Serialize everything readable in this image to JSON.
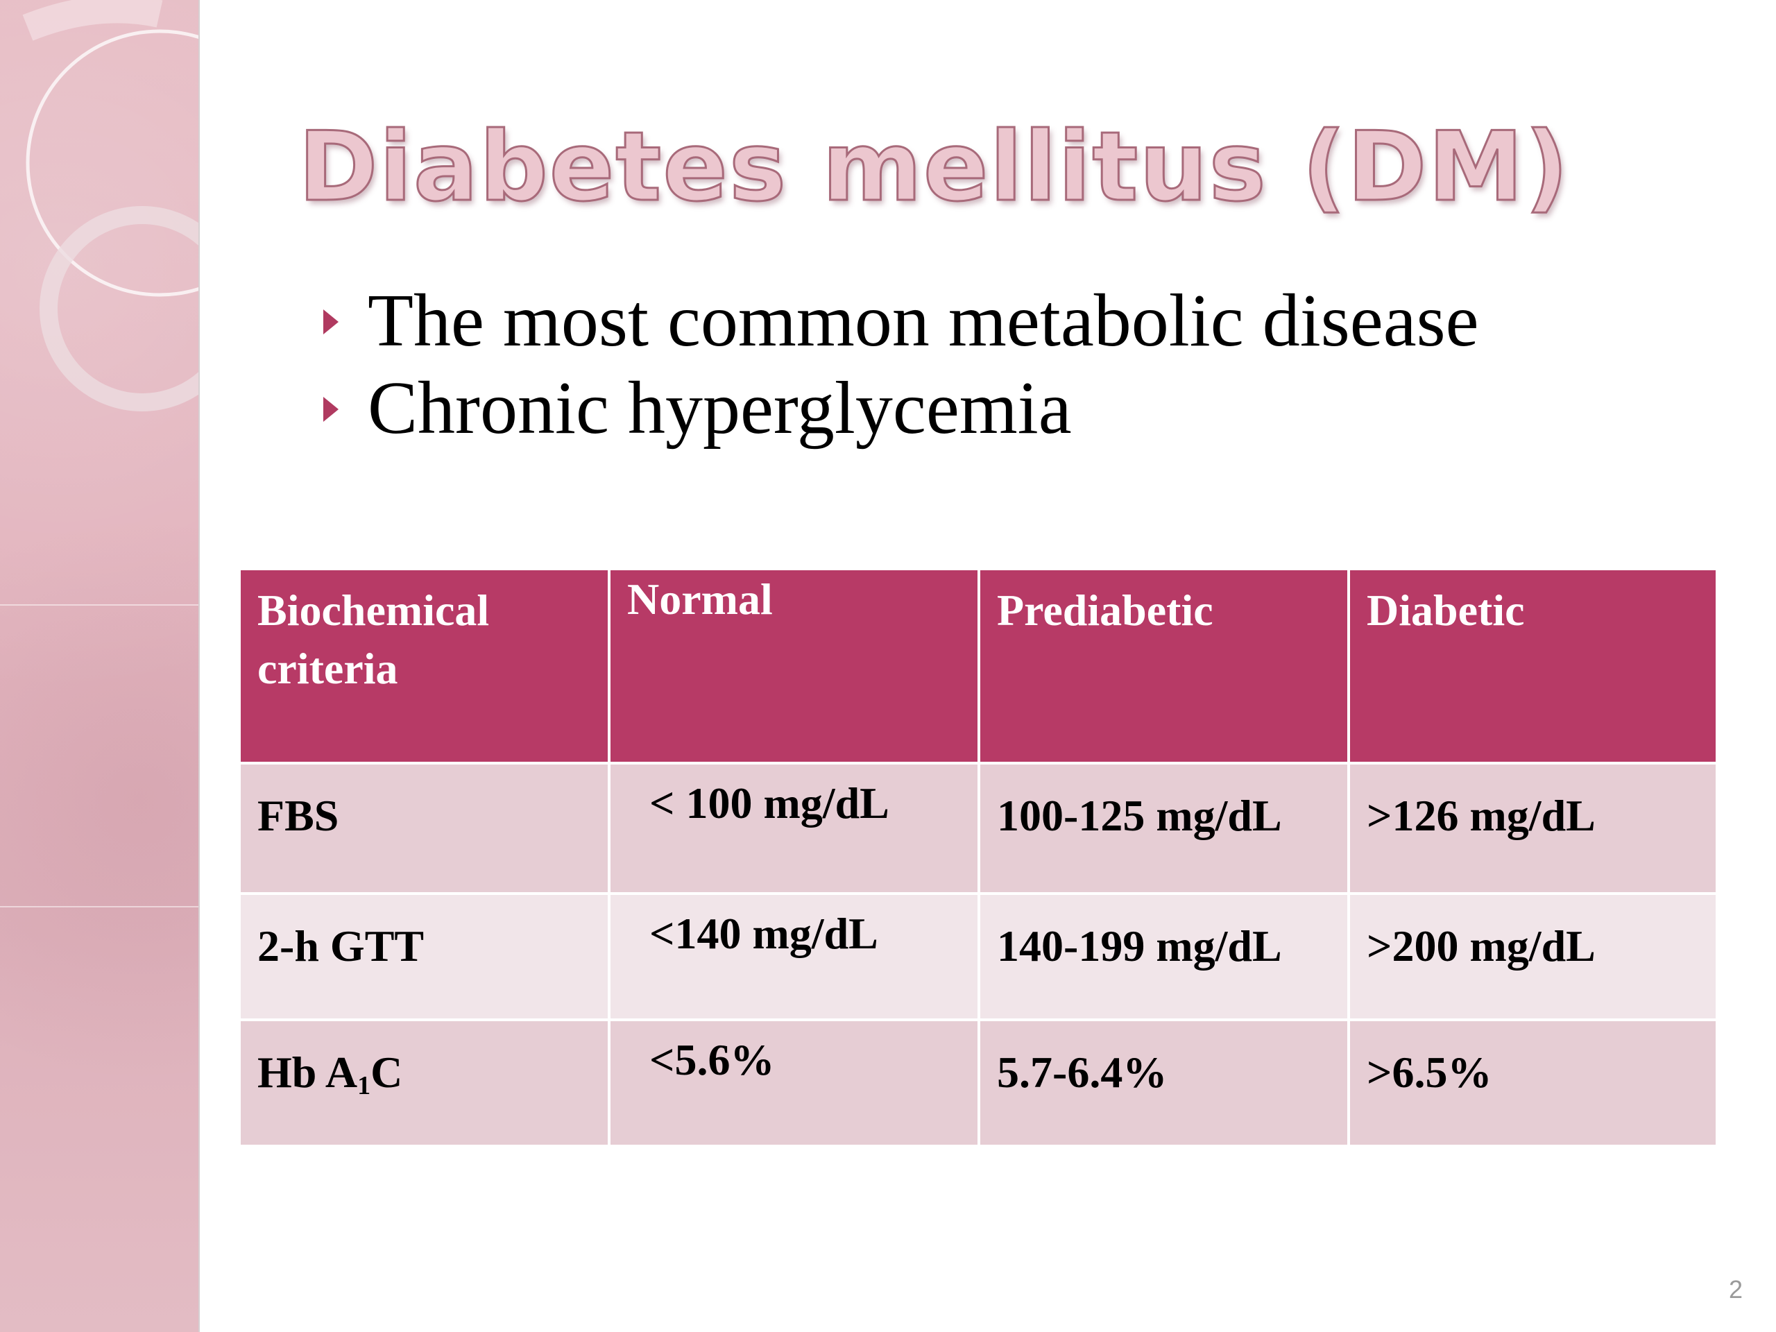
{
  "slide": {
    "title": "Diabetes mellitus (DM)",
    "bullets": [
      "The most common metabolic disease",
      "Chronic hyperglycemia"
    ],
    "page_number": "2"
  },
  "table": {
    "headers": [
      "Biochemical criteria",
      "Normal",
      "Prediabetic",
      "Diabetic"
    ],
    "rows": [
      {
        "criterion": "FBS",
        "normal": "< 100 mg/dL",
        "prediabetic": "100-125 mg/dL",
        "diabetic": ">126 mg/dL"
      },
      {
        "criterion": "2-h GTT",
        "normal": "<140 mg/dL",
        "prediabetic": "140-199 mg/dL",
        "diabetic": ">200 mg/dL"
      },
      {
        "criterion_prefix": "Hb A",
        "criterion_sub": "1",
        "criterion_suffix": "C",
        "normal": "<5.6%",
        "prediabetic": "5.7-6.4%",
        "diabetic": ">6.5%"
      }
    ]
  },
  "colors": {
    "header_bg": "#b73a66",
    "row_dark": "#e6cdd4",
    "row_light": "#f1e5e9",
    "side_panel": "#e2b3bd",
    "title_fill": "#ecc7cf",
    "title_outline": "#a86a7a",
    "bullet_arrow": "#b03a60"
  },
  "icons": {
    "bullet": "triangle-right-icon",
    "decoration": "ring-decoration"
  }
}
